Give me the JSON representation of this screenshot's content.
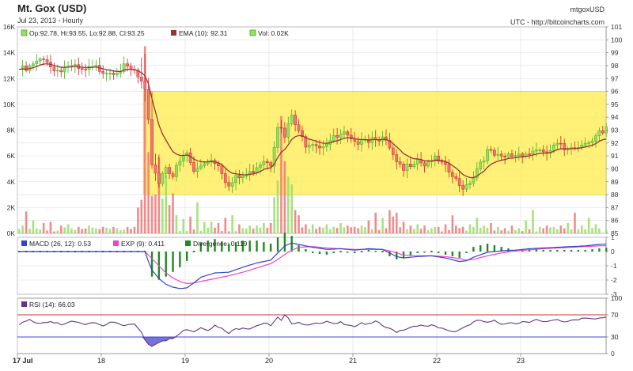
{
  "header": {
    "title": "Mt. Gox (USD)",
    "subtitle": "Jul 23, 2013 - Hourly",
    "source_id": "mtgoxUSD",
    "credit": "UTC - http://bitcoincharts.com"
  },
  "legend_price": {
    "ohlc": "Op:92.78, Hi:93.55, Lo:92.88, Cl:93.25",
    "ema": "EMA (10): 92.31",
    "vol": "Vol: 0.02K"
  },
  "legend_macd": {
    "macd": "MACD (26, 12): 0.53",
    "exp": "EXP (9): 0.411",
    "div": "Divergence: 0.119"
  },
  "legend_rsi": {
    "rsi": "RSI (14): 66.03"
  },
  "colors": {
    "up": "#99dd66",
    "down": "#ee7777",
    "up_stroke": "#44aa22",
    "down_stroke": "#cc2222",
    "ema": "#993333",
    "highlight": "#ffee55",
    "macd": "#3344cc",
    "exp": "#ee44cc",
    "divergence": "#228822",
    "rsi": "#663388",
    "rsi_upper": "#cc3333",
    "rsi_lower": "#4444cc",
    "grid": "#dddddd"
  },
  "chart_data": [
    {
      "type": "candlestick",
      "panel": "price",
      "x_ticks": [
        "17 Jul",
        "18",
        "19",
        "20",
        "21",
        "22",
        "23"
      ],
      "y_right": {
        "min": 85,
        "max": 101,
        "ticks": [
          85,
          86,
          87,
          88,
          89,
          90,
          91,
          92,
          93,
          94,
          95,
          96,
          97,
          98,
          99,
          100,
          101
        ]
      },
      "y_left_volume": {
        "min": 0,
        "max": 16000,
        "ticks": [
          "0K",
          "2K",
          "4K",
          "6K",
          "8K",
          "10K",
          "12K",
          "14K",
          "16K"
        ]
      },
      "highlight_band": {
        "low": 88,
        "high": 96
      },
      "anchors": [
        [
          0,
          97.7
        ],
        [
          2,
          97.6
        ],
        [
          5,
          98.2
        ],
        [
          8,
          98.5
        ],
        [
          10,
          97.6
        ],
        [
          14,
          98.0
        ],
        [
          18,
          97.5
        ],
        [
          22,
          97.8
        ],
        [
          26,
          97.6
        ],
        [
          30,
          97.8
        ],
        [
          33,
          97.5
        ],
        [
          35,
          96.6
        ],
        [
          36,
          95.8
        ],
        [
          37,
          93.5
        ],
        [
          38,
          90.5
        ],
        [
          40,
          89.0
        ],
        [
          42,
          90.3
        ],
        [
          44,
          89.5
        ],
        [
          46,
          90.5
        ],
        [
          48,
          91.2
        ],
        [
          50,
          89.7
        ],
        [
          52,
          90.3
        ],
        [
          54,
          90.8
        ],
        [
          57,
          90.5
        ],
        [
          60,
          88.6
        ],
        [
          62,
          89.2
        ],
        [
          64,
          89.4
        ],
        [
          66,
          89.6
        ],
        [
          68,
          90.3
        ],
        [
          70,
          90.8
        ],
        [
          72,
          90.5
        ],
        [
          74,
          93.5
        ],
        [
          76,
          92.4
        ],
        [
          78,
          94.1
        ],
        [
          80,
          92.7
        ],
        [
          82,
          92.0
        ],
        [
          84,
          92.2
        ],
        [
          86,
          91.8
        ],
        [
          88,
          92.1
        ],
        [
          90,
          92.3
        ],
        [
          93,
          92.6
        ],
        [
          96,
          91.8
        ],
        [
          98,
          92.6
        ],
        [
          100,
          92.3
        ],
        [
          102,
          92.6
        ],
        [
          104,
          92.3
        ],
        [
          106,
          91.5
        ],
        [
          108,
          90.3
        ],
        [
          110,
          89.8
        ],
        [
          112,
          90.5
        ],
        [
          114,
          90.9
        ],
        [
          116,
          90.4
        ],
        [
          118,
          90.8
        ],
        [
          120,
          90.5
        ],
        [
          122,
          90.0
        ],
        [
          124,
          89.4
        ],
        [
          126,
          88.6
        ],
        [
          128,
          88.8
        ],
        [
          130,
          89.5
        ],
        [
          132,
          90.6
        ],
        [
          134,
          91.3
        ],
        [
          136,
          91.0
        ],
        [
          138,
          90.7
        ],
        [
          140,
          91.0
        ],
        [
          142,
          91.1
        ],
        [
          144,
          91.3
        ],
        [
          146,
          91.2
        ],
        [
          148,
          91.6
        ],
        [
          150,
          91.0
        ],
        [
          152,
          91.4
        ],
        [
          154,
          91.8
        ],
        [
          156,
          91.5
        ],
        [
          158,
          91.9
        ],
        [
          160,
          91.7
        ],
        [
          162,
          92.3
        ],
        [
          164,
          92.1
        ],
        [
          166,
          92.7
        ],
        [
          167,
          92.78
        ],
        [
          168,
          93.25
        ]
      ],
      "last_candle": {
        "open": 92.78,
        "high": 93.55,
        "low": 92.88,
        "close": 93.25
      },
      "ema_10_last": 92.31,
      "volume_spikes": [
        [
          1,
          0.6
        ],
        [
          2,
          1.7
        ],
        [
          4,
          1.0
        ],
        [
          7,
          0.8
        ],
        [
          9,
          0.9
        ],
        [
          12,
          0.6
        ],
        [
          14,
          0.7
        ],
        [
          17,
          0.5
        ],
        [
          20,
          0.6
        ],
        [
          24,
          0.5
        ],
        [
          28,
          0.4
        ],
        [
          31,
          0.5
        ],
        [
          34,
          2.0
        ],
        [
          35,
          2.6
        ],
        [
          36,
          14.5
        ],
        [
          37,
          6.3
        ],
        [
          38,
          2.9
        ],
        [
          39,
          3.0
        ],
        [
          40,
          5.9
        ],
        [
          41,
          2.7
        ],
        [
          42,
          4.5
        ],
        [
          43,
          2.2
        ],
        [
          44,
          3.1
        ],
        [
          45,
          1.4
        ],
        [
          47,
          1.1
        ],
        [
          49,
          1.3
        ],
        [
          51,
          2.4
        ],
        [
          53,
          0.9
        ],
        [
          55,
          0.9
        ],
        [
          57,
          0.8
        ],
        [
          59,
          1.2
        ],
        [
          61,
          1.4
        ],
        [
          63,
          0.7
        ],
        [
          66,
          0.6
        ],
        [
          68,
          0.6
        ],
        [
          70,
          0.8
        ],
        [
          72,
          0.8
        ],
        [
          73,
          2.8
        ],
        [
          74,
          4.1
        ],
        [
          75,
          9.1
        ],
        [
          76,
          5.6
        ],
        [
          77,
          4.4
        ],
        [
          78,
          3.8
        ],
        [
          79,
          1.8
        ],
        [
          80,
          1.4
        ],
        [
          82,
          0.7
        ],
        [
          84,
          0.7
        ],
        [
          86,
          0.5
        ],
        [
          88,
          0.7
        ],
        [
          90,
          0.5
        ],
        [
          92,
          0.8
        ],
        [
          94,
          0.6
        ],
        [
          96,
          0.5
        ],
        [
          98,
          0.6
        ],
        [
          100,
          1.0
        ],
        [
          102,
          1.6
        ],
        [
          104,
          1.2
        ],
        [
          106,
          1.8
        ],
        [
          107,
          1.3
        ],
        [
          108,
          1.6
        ],
        [
          110,
          0.9
        ],
        [
          112,
          0.6
        ],
        [
          114,
          0.7
        ],
        [
          116,
          0.6
        ],
        [
          118,
          0.4
        ],
        [
          120,
          0.5
        ],
        [
          122,
          0.7
        ],
        [
          124,
          1.4
        ],
        [
          125,
          0.6
        ],
        [
          127,
          0.5
        ],
        [
          129,
          0.7
        ],
        [
          131,
          1.2
        ],
        [
          133,
          0.6
        ],
        [
          135,
          0.8
        ],
        [
          137,
          0.5
        ],
        [
          139,
          0.4
        ],
        [
          141,
          0.6
        ],
        [
          143,
          0.4
        ],
        [
          145,
          1.0
        ],
        [
          147,
          1.8
        ],
        [
          149,
          0.5
        ],
        [
          151,
          0.6
        ],
        [
          153,
          0.5
        ],
        [
          155,
          0.6
        ],
        [
          157,
          0.8
        ],
        [
          159,
          1.6
        ],
        [
          161,
          0.6
        ],
        [
          163,
          1.2
        ],
        [
          165,
          0.7
        ],
        [
          167,
          0.02
        ]
      ]
    },
    {
      "type": "macd",
      "panel": "macd",
      "y_right": {
        "min": -3,
        "max": 1,
        "ticks": [
          -3,
          -2,
          -1,
          0,
          1
        ]
      },
      "macd_anchors": [
        [
          36,
          0.0
        ],
        [
          37,
          -0.7
        ],
        [
          38,
          -1.3
        ],
        [
          40,
          -1.9
        ],
        [
          42,
          -2.3
        ],
        [
          44,
          -2.5
        ],
        [
          46,
          -2.6
        ],
        [
          48,
          -2.55
        ],
        [
          50,
          -2.2
        ],
        [
          52,
          -1.8
        ],
        [
          56,
          -1.5
        ],
        [
          60,
          -1.45
        ],
        [
          64,
          -1.1
        ],
        [
          68,
          -0.8
        ],
        [
          72,
          -0.6
        ],
        [
          74,
          -0.1
        ],
        [
          76,
          0.4
        ],
        [
          78,
          0.6
        ],
        [
          80,
          0.5
        ],
        [
          84,
          0.3
        ],
        [
          88,
          0.15
        ],
        [
          92,
          0.2
        ],
        [
          96,
          0.1
        ],
        [
          100,
          0.2
        ],
        [
          104,
          0.15
        ],
        [
          106,
          -0.1
        ],
        [
          108,
          -0.35
        ],
        [
          110,
          -0.45
        ],
        [
          114,
          -0.35
        ],
        [
          118,
          -0.3
        ],
        [
          122,
          -0.45
        ],
        [
          126,
          -0.7
        ],
        [
          128,
          -0.65
        ],
        [
          130,
          -0.4
        ],
        [
          134,
          -0.05
        ],
        [
          138,
          0.05
        ],
        [
          142,
          0.1
        ],
        [
          146,
          0.2
        ],
        [
          150,
          0.25
        ],
        [
          154,
          0.3
        ],
        [
          158,
          0.35
        ],
        [
          162,
          0.4
        ],
        [
          166,
          0.5
        ],
        [
          168,
          0.53
        ]
      ],
      "exp_anchors": [
        [
          36,
          0.0
        ],
        [
          38,
          -0.5
        ],
        [
          40,
          -1.0
        ],
        [
          42,
          -1.5
        ],
        [
          44,
          -1.85
        ],
        [
          46,
          -2.1
        ],
        [
          48,
          -2.25
        ],
        [
          50,
          -2.2
        ],
        [
          52,
          -2.1
        ],
        [
          56,
          -1.9
        ],
        [
          60,
          -1.7
        ],
        [
          64,
          -1.45
        ],
        [
          68,
          -1.15
        ],
        [
          72,
          -0.85
        ],
        [
          74,
          -0.55
        ],
        [
          76,
          -0.2
        ],
        [
          78,
          0.1
        ],
        [
          80,
          0.3
        ],
        [
          84,
          0.35
        ],
        [
          88,
          0.25
        ],
        [
          92,
          0.2
        ],
        [
          96,
          0.15
        ],
        [
          100,
          0.15
        ],
        [
          104,
          0.15
        ],
        [
          106,
          0.05
        ],
        [
          108,
          -0.1
        ],
        [
          110,
          -0.25
        ],
        [
          114,
          -0.3
        ],
        [
          118,
          -0.3
        ],
        [
          122,
          -0.35
        ],
        [
          126,
          -0.5
        ],
        [
          128,
          -0.6
        ],
        [
          130,
          -0.55
        ],
        [
          134,
          -0.3
        ],
        [
          138,
          -0.1
        ],
        [
          142,
          0.05
        ],
        [
          146,
          0.12
        ],
        [
          150,
          0.2
        ],
        [
          154,
          0.25
        ],
        [
          158,
          0.3
        ],
        [
          162,
          0.35
        ],
        [
          166,
          0.4
        ],
        [
          168,
          0.411
        ]
      ],
      "last_values": {
        "macd": 0.53,
        "exp": 0.411,
        "divergence": 0.119
      }
    },
    {
      "type": "line",
      "panel": "rsi",
      "y_right": {
        "min": 0,
        "max": 100,
        "ticks": [
          0,
          30,
          70,
          100
        ]
      },
      "levels": {
        "upper": 70,
        "lower": 30
      },
      "rsi_anchors": [
        [
          0,
          52
        ],
        [
          3,
          60
        ],
        [
          6,
          56
        ],
        [
          9,
          60
        ],
        [
          12,
          50
        ],
        [
          15,
          58
        ],
        [
          18,
          52
        ],
        [
          21,
          57
        ],
        [
          24,
          52
        ],
        [
          27,
          56
        ],
        [
          30,
          50
        ],
        [
          33,
          54
        ],
        [
          35,
          40
        ],
        [
          36,
          25
        ],
        [
          37,
          18
        ],
        [
          38,
          15
        ],
        [
          40,
          22
        ],
        [
          42,
          23
        ],
        [
          44,
          27
        ],
        [
          46,
          36
        ],
        [
          48,
          45
        ],
        [
          50,
          41
        ],
        [
          52,
          48
        ],
        [
          54,
          44
        ],
        [
          56,
          50
        ],
        [
          58,
          44
        ],
        [
          60,
          36
        ],
        [
          62,
          44
        ],
        [
          64,
          48
        ],
        [
          66,
          46
        ],
        [
          68,
          52
        ],
        [
          70,
          55
        ],
        [
          72,
          50
        ],
        [
          74,
          64
        ],
        [
          75,
          58
        ],
        [
          76,
          68
        ],
        [
          78,
          56
        ],
        [
          80,
          58
        ],
        [
          82,
          52
        ],
        [
          84,
          56
        ],
        [
          86,
          52
        ],
        [
          88,
          57
        ],
        [
          90,
          52
        ],
        [
          92,
          56
        ],
        [
          94,
          54
        ],
        [
          96,
          50
        ],
        [
          98,
          56
        ],
        [
          100,
          52
        ],
        [
          102,
          57
        ],
        [
          104,
          50
        ],
        [
          106,
          44
        ],
        [
          108,
          40
        ],
        [
          110,
          44
        ],
        [
          112,
          48
        ],
        [
          114,
          52
        ],
        [
          116,
          48
        ],
        [
          118,
          50
        ],
        [
          120,
          46
        ],
        [
          122,
          44
        ],
        [
          124,
          40
        ],
        [
          126,
          44
        ],
        [
          128,
          50
        ],
        [
          130,
          56
        ],
        [
          132,
          60
        ],
        [
          134,
          55
        ],
        [
          136,
          58
        ],
        [
          138,
          54
        ],
        [
          140,
          57
        ],
        [
          142,
          55
        ],
        [
          144,
          59
        ],
        [
          146,
          55
        ],
        [
          148,
          60
        ],
        [
          150,
          56
        ],
        [
          152,
          60
        ],
        [
          154,
          62
        ],
        [
          156,
          58
        ],
        [
          158,
          62
        ],
        [
          160,
          60
        ],
        [
          162,
          63
        ],
        [
          164,
          61
        ],
        [
          166,
          64
        ],
        [
          168,
          66.03
        ]
      ],
      "last_value": 66.03
    }
  ]
}
